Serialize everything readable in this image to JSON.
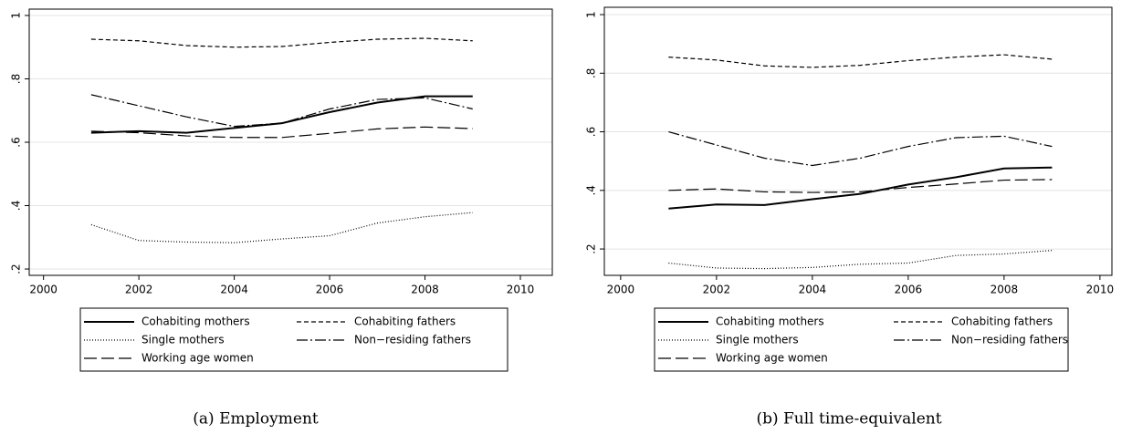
{
  "chart_data": [
    {
      "type": "line",
      "caption": "(a) Employment",
      "x": [
        2001,
        2002,
        2003,
        2004,
        2005,
        2006,
        2007,
        2008,
        2009
      ],
      "xlim": [
        1999.7,
        2010.67
      ],
      "xticks": [
        2000,
        2002,
        2004,
        2006,
        2008,
        2010
      ],
      "ylim": [
        0.18,
        1.02
      ],
      "yticks": [
        {
          "value": 0.2,
          "label": ".2"
        },
        {
          "value": 0.4,
          "label": ".4"
        },
        {
          "value": 0.6,
          "label": ".6"
        },
        {
          "value": 0.8,
          "label": ".8"
        },
        1
      ],
      "grid": true,
      "series": [
        {
          "name": "Cohabiting mothers",
          "color": "#000000",
          "dash": "none",
          "values": [
            0.63,
            0.635,
            0.63,
            0.645,
            0.66,
            0.695,
            0.725,
            0.745,
            0.745
          ]
        },
        {
          "name": "Cohabiting fathers",
          "color": "#000000",
          "dash": "5,3",
          "values": [
            0.925,
            0.92,
            0.905,
            0.9,
            0.902,
            0.915,
            0.925,
            0.928,
            0.92
          ]
        },
        {
          "name": "Single mothers",
          "color": "#000000",
          "dash": "1,2",
          "values": [
            0.34,
            0.29,
            0.285,
            0.283,
            0.295,
            0.305,
            0.345,
            0.365,
            0.378
          ]
        },
        {
          "name": "Non−residing fathers",
          "color": "#000000",
          "dash": "12,3,2,3",
          "values": [
            0.75,
            0.715,
            0.68,
            0.65,
            0.66,
            0.705,
            0.735,
            0.74,
            0.705
          ]
        },
        {
          "name": "Working age women",
          "color": "#000000",
          "dash": "14,5",
          "values": [
            0.635,
            0.63,
            0.62,
            0.615,
            0.615,
            0.628,
            0.642,
            0.648,
            0.643
          ]
        }
      ]
    },
    {
      "type": "line",
      "caption": "(b) Full time-equivalent",
      "x": [
        2001,
        2002,
        2003,
        2004,
        2005,
        2006,
        2007,
        2008,
        2009
      ],
      "xlim": [
        1999.66,
        2010.25
      ],
      "xticks": [
        2000,
        2002,
        2004,
        2006,
        2008,
        2010
      ],
      "ylim": [
        0.11,
        1.025
      ],
      "yticks": [
        {
          "value": 0.2,
          "label": ".2"
        },
        {
          "value": 0.4,
          "label": ".4"
        },
        {
          "value": 0.6,
          "label": ".6"
        },
        {
          "value": 0.8,
          "label": ".8"
        },
        1
      ],
      "grid": true,
      "series": [
        {
          "name": "Cohabiting mothers",
          "color": "#000000",
          "dash": "none",
          "values": [
            0.338,
            0.352,
            0.35,
            0.37,
            0.388,
            0.42,
            0.445,
            0.475,
            0.478
          ]
        },
        {
          "name": "Cohabiting fathers",
          "color": "#000000",
          "dash": "5,3",
          "values": [
            0.855,
            0.845,
            0.825,
            0.82,
            0.827,
            0.843,
            0.855,
            0.863,
            0.848
          ]
        },
        {
          "name": "Single mothers",
          "color": "#000000",
          "dash": "1,2",
          "values": [
            0.152,
            0.135,
            0.133,
            0.137,
            0.148,
            0.152,
            0.178,
            0.183,
            0.195
          ]
        },
        {
          "name": "Non−residing fathers",
          "color": "#000000",
          "dash": "12,3,2,3",
          "values": [
            0.6,
            0.555,
            0.51,
            0.485,
            0.51,
            0.55,
            0.58,
            0.585,
            0.55
          ]
        },
        {
          "name": "Working age women",
          "color": "#000000",
          "dash": "14,5",
          "values": [
            0.4,
            0.405,
            0.395,
            0.393,
            0.395,
            0.41,
            0.422,
            0.435,
            0.437
          ]
        }
      ]
    }
  ]
}
